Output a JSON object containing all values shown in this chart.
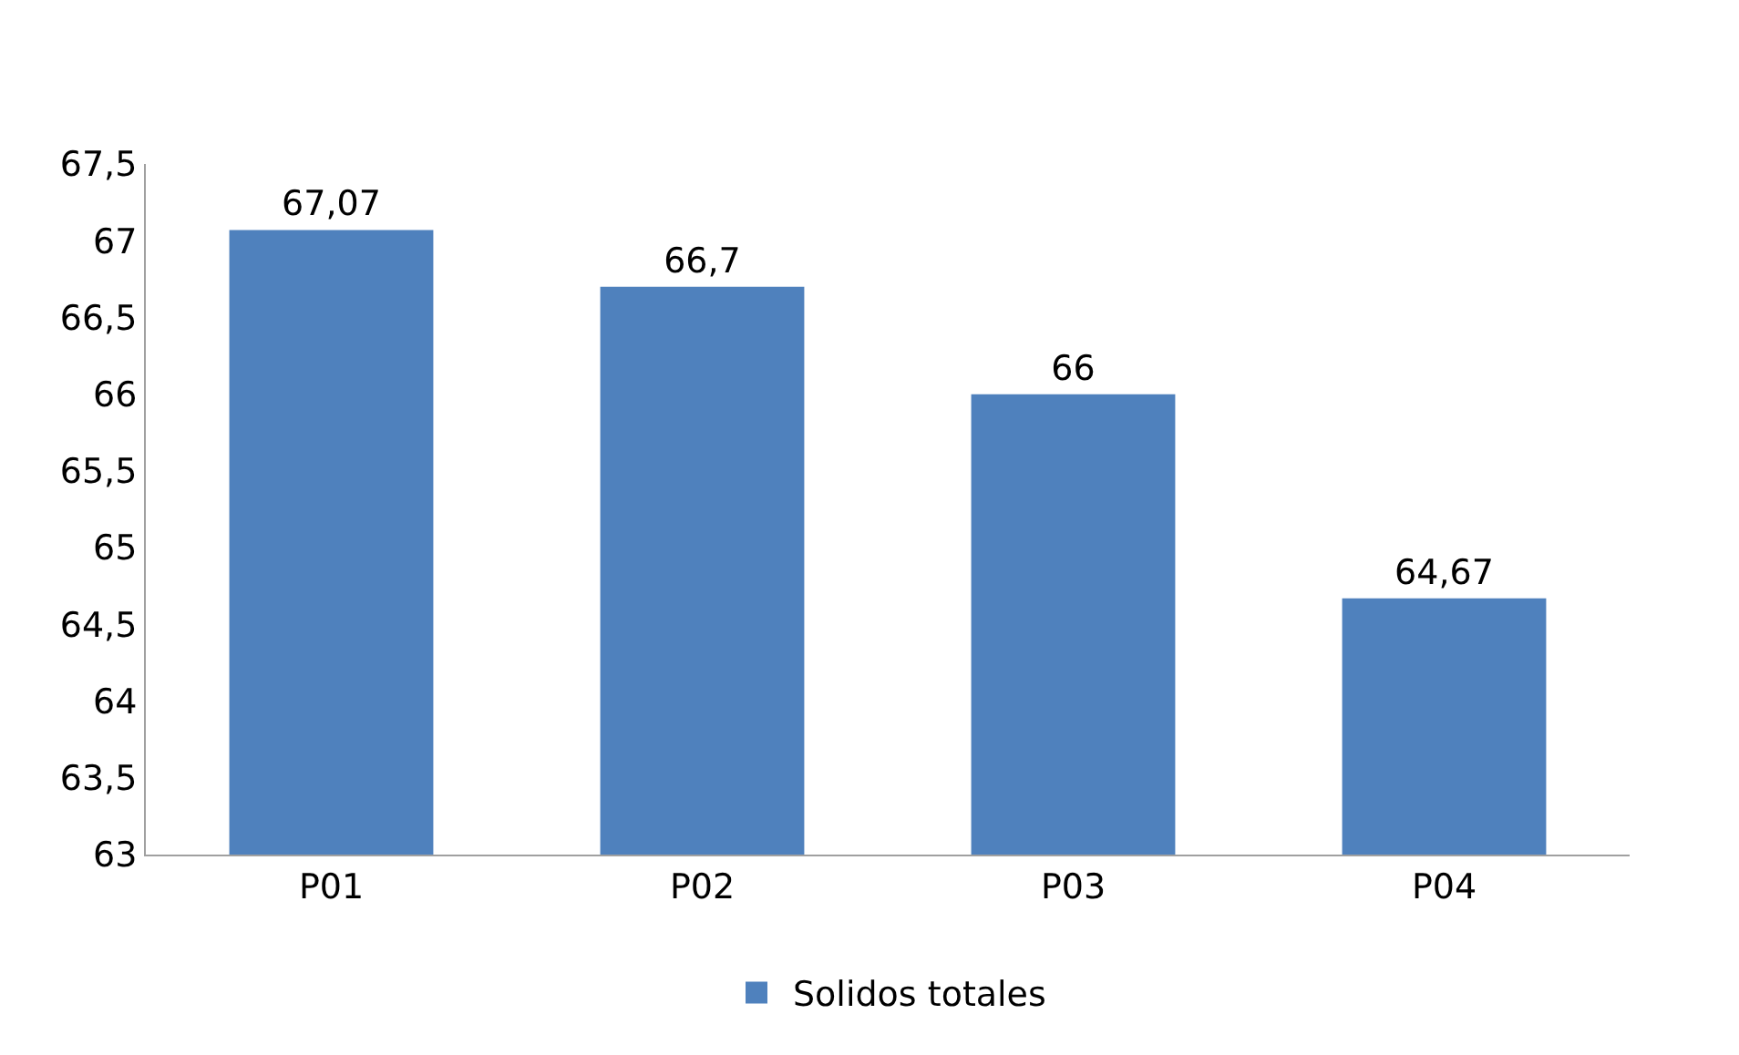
{
  "chart_data": {
    "type": "bar",
    "categories": [
      "P01",
      "P02",
      "P03",
      "P04"
    ],
    "series": [
      {
        "name": "Solidos totales",
        "color": "#4f81bd",
        "values": [
          67.07,
          66.7,
          66,
          64.67
        ],
        "value_labels": [
          "67,07",
          "66,7",
          "66",
          "64,67"
        ]
      }
    ],
    "ylim": [
      63,
      67.5
    ],
    "yticks": [
      63,
      {
        "value": 63.5,
        "label": "63,5"
      },
      64,
      {
        "value": 64.5,
        "label": "64,5"
      },
      65,
      {
        "value": 65.5,
        "label": "65,5"
      },
      66,
      {
        "value": 66.5,
        "label": "66,5"
      },
      67,
      {
        "value": 67.5,
        "label": "67,5"
      }
    ],
    "legend": "bottom"
  }
}
